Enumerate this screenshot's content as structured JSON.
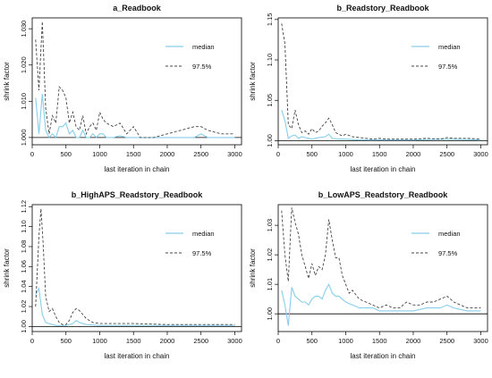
{
  "chart_data": [
    {
      "type": "line",
      "title": "a_Readbook",
      "xlabel": "last iteration in chain",
      "ylabel": "shrink factor",
      "xlim": [
        0,
        3100
      ],
      "ylim": [
        0.998,
        1.033
      ],
      "xticks": [
        0,
        500,
        1000,
        1500,
        2000,
        2500,
        3000
      ],
      "yticks": [
        1.0,
        1.01,
        1.02,
        1.03
      ],
      "ytick_labels": [
        "1.000",
        "1.010",
        "1.020",
        "1.030"
      ],
      "legend": {
        "position": "top-right",
        "entries": [
          "median",
          "97.5%"
        ]
      },
      "reference_line": 1.0,
      "series": [
        {
          "name": "median",
          "style": "solid",
          "color": "#87ceeb",
          "x": [
            50,
            100,
            150,
            200,
            250,
            300,
            350,
            400,
            450,
            500,
            550,
            600,
            650,
            700,
            750,
            800,
            850,
            900,
            950,
            1000,
            1050,
            1100,
            1200,
            1300,
            1400,
            1500,
            1600,
            1800,
            2000,
            2200,
            2400,
            2500,
            2600,
            2800,
            3000
          ],
          "y": [
            1.011,
            1.001,
            1.012,
            1.002,
            1.0,
            1.001,
            1.0,
            1.003,
            1.003,
            1.004,
            1.001,
            1.002,
            1.0,
            1.0,
            1.002,
            1.0,
            1.0,
            1.001,
            1.0,
            1.001,
            1.001,
            1.0,
            1.0,
            1.0005,
            1.0,
            1.0,
            1.0,
            1.0,
            1.0,
            1.0,
            1.0,
            1.001,
            1.0,
            1.0,
            1.0
          ]
        },
        {
          "name": "97.5%",
          "style": "dashed",
          "color": "#444444",
          "x": [
            50,
            100,
            150,
            200,
            250,
            300,
            350,
            400,
            450,
            500,
            550,
            600,
            650,
            700,
            750,
            800,
            850,
            900,
            950,
            1000,
            1050,
            1100,
            1200,
            1300,
            1400,
            1500,
            1600,
            1800,
            2000,
            2200,
            2400,
            2500,
            2600,
            2800,
            3000
          ],
          "y": [
            1.027,
            1.013,
            1.032,
            1.008,
            1.001,
            1.006,
            1.004,
            1.014,
            1.013,
            1.011,
            1.004,
            1.007,
            1.003,
            1.002,
            1.006,
            1.001,
            1.003,
            1.004,
            1.002,
            1.007,
            1.005,
            1.004,
            1.003,
            1.004,
            1.001,
            1.003,
            1.0,
            1.0,
            1.001,
            1.002,
            1.003,
            1.003,
            1.002,
            1.001,
            1.001
          ]
        }
      ]
    },
    {
      "type": "line",
      "title": "b_Readstory_Readbook",
      "xlabel": "last iteration in chain",
      "ylabel": "shrink factor",
      "xlim": [
        0,
        3100
      ],
      "ylim": [
        0.995,
        1.152
      ],
      "xticks": [
        0,
        500,
        1000,
        1500,
        2000,
        2500,
        3000
      ],
      "yticks": [
        1.0,
        1.05,
        1.1,
        1.15
      ],
      "ytick_labels": [
        "1.00",
        "1.05",
        "1.10",
        "1.15"
      ],
      "legend": {
        "position": "top-right",
        "entries": [
          "median",
          "97.5%"
        ]
      },
      "reference_line": 1.0,
      "series": [
        {
          "name": "median",
          "style": "solid",
          "color": "#87ceeb",
          "x": [
            50,
            100,
            150,
            200,
            250,
            300,
            350,
            400,
            450,
            500,
            600,
            700,
            750,
            800,
            900,
            1000,
            1200,
            1500,
            2000,
            2500,
            3000
          ],
          "y": [
            1.038,
            1.025,
            1.003,
            1.006,
            1.007,
            1.003,
            1.005,
            1.004,
            1.003,
            1.002,
            1.004,
            1.005,
            1.008,
            1.003,
            1.002,
            1.002,
            1.001,
            1.001,
            1.001,
            1.002,
            1.001
          ]
        },
        {
          "name": "97.5%",
          "style": "dashed",
          "color": "#444444",
          "x": [
            50,
            100,
            150,
            200,
            250,
            300,
            350,
            400,
            450,
            500,
            550,
            600,
            650,
            700,
            750,
            800,
            850,
            900,
            950,
            1000,
            1100,
            1200,
            1300,
            1400,
            1500,
            1600,
            1800,
            2000,
            2200,
            2400,
            2500,
            2600,
            2800,
            3000
          ],
          "y": [
            1.145,
            1.12,
            1.02,
            1.015,
            1.038,
            1.02,
            1.01,
            1.012,
            1.008,
            1.015,
            1.01,
            1.012,
            1.018,
            1.022,
            1.028,
            1.02,
            1.01,
            1.008,
            1.006,
            1.008,
            1.005,
            1.004,
            1.003,
            1.002,
            1.003,
            1.002,
            1.002,
            1.002,
            1.003,
            1.002,
            1.004,
            1.003,
            1.003,
            1.002
          ]
        }
      ]
    },
    {
      "type": "line",
      "title": "b_HighAPS_Readstory_Readbook",
      "xlabel": "last iteration in chain",
      "ylabel": "shrink factor",
      "xlim": [
        0,
        3100
      ],
      "ylim": [
        0.995,
        1.122
      ],
      "xticks": [
        0,
        500,
        1000,
        1500,
        2000,
        2500,
        3000
      ],
      "yticks": [
        1.0,
        1.02,
        1.04,
        1.06,
        1.08,
        1.1,
        1.12
      ],
      "ytick_labels": [
        "1.00",
        "1.02",
        "1.04",
        "1.06",
        "1.08",
        "1.10",
        "1.12"
      ],
      "legend": {
        "position": "top-right",
        "entries": [
          "median",
          "97.5%"
        ]
      },
      "reference_line": 1.0,
      "series": [
        {
          "name": "median",
          "style": "solid",
          "color": "#87ceeb",
          "x": [
            50,
            100,
            150,
            200,
            250,
            300,
            350,
            400,
            500,
            600,
            650,
            700,
            800,
            1000,
            1500,
            2000,
            2500,
            3000
          ],
          "y": [
            1.032,
            1.038,
            1.012,
            1.004,
            1.003,
            1.002,
            1.001,
            1.001,
            1.001,
            1.003,
            1.006,
            1.004,
            1.002,
            1.001,
            1.001,
            1.001,
            1.001,
            1.001
          ]
        },
        {
          "name": "97.5%",
          "style": "dashed",
          "color": "#444444",
          "x": [
            50,
            100,
            130,
            160,
            200,
            250,
            300,
            350,
            400,
            450,
            500,
            550,
            600,
            650,
            700,
            800,
            900,
            1000,
            1200,
            1500,
            2000,
            2500,
            3000
          ],
          "y": [
            1.02,
            1.09,
            1.118,
            1.085,
            1.03,
            1.015,
            1.018,
            1.01,
            1.004,
            1.002,
            1.002,
            1.006,
            1.014,
            1.018,
            1.016,
            1.008,
            1.004,
            1.003,
            1.003,
            1.003,
            1.002,
            1.002,
            1.002
          ]
        }
      ]
    },
    {
      "type": "line",
      "title": "b_LowAPS_Readstory_Readbook",
      "xlabel": "last iteration in chain",
      "ylabel": "shrink factor",
      "xlim": [
        0,
        3100
      ],
      "ylim": [
        0.994,
        1.037
      ],
      "xticks": [
        0,
        500,
        1000,
        1500,
        2000,
        2500,
        3000
      ],
      "yticks": [
        1.0,
        1.01,
        1.02,
        1.03
      ],
      "ytick_labels": [
        "1.00",
        "1.01",
        "1.02",
        "1.03"
      ],
      "legend": {
        "position": "top-right",
        "entries": [
          "median",
          "97.5%"
        ]
      },
      "reference_line": 1.0,
      "series": [
        {
          "name": "median",
          "style": "solid",
          "color": "#87ceeb",
          "x": [
            50,
            100,
            150,
            200,
            250,
            300,
            350,
            400,
            450,
            500,
            550,
            600,
            650,
            700,
            750,
            800,
            850,
            900,
            950,
            1000,
            1100,
            1200,
            1300,
            1400,
            1500,
            1600,
            1800,
            2000,
            2200,
            2400,
            2500,
            2600,
            2800,
            3000
          ],
          "y": [
            1.008,
            1.003,
            0.996,
            1.009,
            1.006,
            1.005,
            1.004,
            1.004,
            1.003,
            1.005,
            1.006,
            1.006,
            1.005,
            1.008,
            1.01,
            1.007,
            1.006,
            1.006,
            1.005,
            1.004,
            1.003,
            1.002,
            1.002,
            1.002,
            1.001,
            1.001,
            1.001,
            1.001,
            1.002,
            1.002,
            1.003,
            1.002,
            1.001,
            1.001
          ]
        },
        {
          "name": "97.5%",
          "style": "dashed",
          "color": "#444444",
          "x": [
            50,
            100,
            150,
            200,
            250,
            300,
            350,
            400,
            450,
            500,
            550,
            600,
            650,
            700,
            750,
            800,
            850,
            900,
            950,
            1000,
            1050,
            1100,
            1200,
            1300,
            1400,
            1500,
            1600,
            1700,
            1800,
            1900,
            2000,
            2100,
            2200,
            2300,
            2400,
            2500,
            2600,
            2700,
            2800,
            2900,
            3000
          ],
          "y": [
            1.035,
            1.02,
            1.011,
            1.036,
            1.031,
            1.027,
            1.02,
            1.016,
            1.012,
            1.017,
            1.013,
            1.016,
            1.015,
            1.02,
            1.032,
            1.025,
            1.019,
            1.019,
            1.013,
            1.01,
            1.007,
            1.008,
            1.005,
            1.004,
            1.003,
            1.002,
            1.003,
            1.002,
            1.002,
            1.004,
            1.003,
            1.003,
            1.004,
            1.004,
            1.005,
            1.006,
            1.004,
            1.003,
            1.002,
            1.002,
            1.002
          ]
        }
      ]
    }
  ]
}
